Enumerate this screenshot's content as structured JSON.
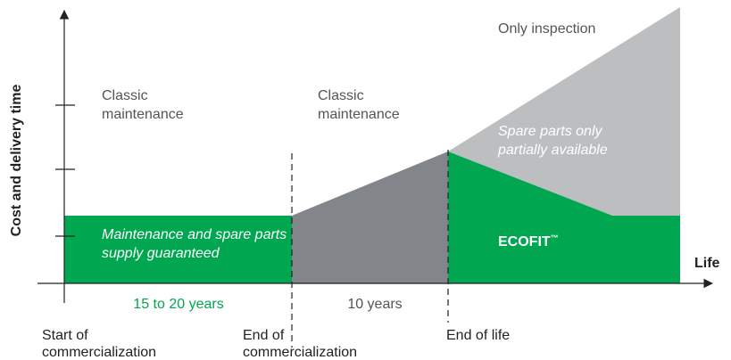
{
  "y_axis_label": "Cost and delivery time",
  "x_axis_label": "Life",
  "phases": [
    {
      "label_lines": [
        "Classic",
        "maintenance"
      ],
      "band_text_lines": [
        "Maintenance and spare parts",
        "supply guaranteed"
      ],
      "duration": "15 to 20 years"
    },
    {
      "label_lines": [
        "Classic",
        "maintenance"
      ],
      "duration": "10 years"
    },
    {
      "label_lines": [
        "Only inspection"
      ],
      "band_text_lines": [
        "Spare parts only",
        "partially available"
      ],
      "product": "ECOFIT",
      "product_mark": "™"
    }
  ],
  "milestones": [
    {
      "lines": [
        "Start of",
        "commercialization"
      ]
    },
    {
      "lines": [
        "End of",
        "commercialization"
      ]
    },
    {
      "lines": [
        "End of life"
      ]
    }
  ]
}
